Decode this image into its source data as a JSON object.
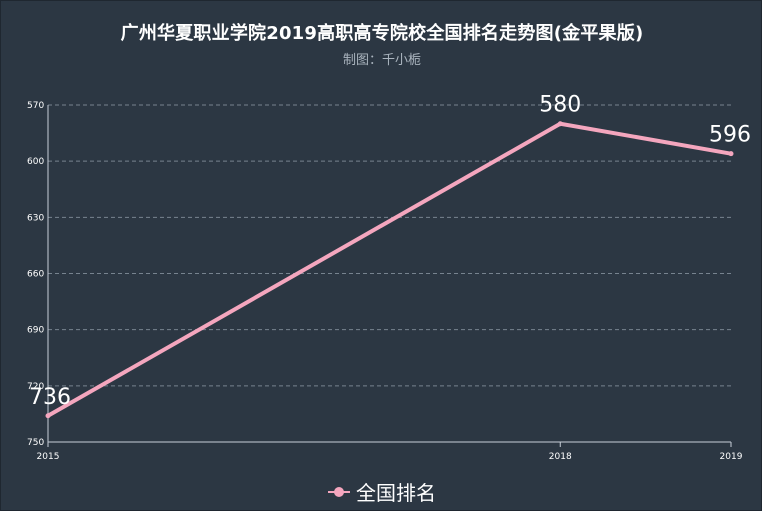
{
  "title": "广州华夏职业学院2019高职高专院校全国排名走势图(金平果版)",
  "subtitle": "制图：千小栀",
  "colors": {
    "background": "#2c3743",
    "series": "#f4a6be",
    "grid": "#8a96a3",
    "text": "#ffffff"
  },
  "chart_data": {
    "type": "line",
    "title": "广州华夏职业学院2019高职高专院校全国排名走势图(金平果版)",
    "subtitle": "制图：千小栀",
    "x": [
      "2015",
      "2018",
      "2019"
    ],
    "y_axis": {
      "inverse": true,
      "min": 570,
      "max": 750,
      "ticks": [
        570,
        600,
        630,
        660,
        690,
        720,
        750
      ]
    },
    "grid": true,
    "legend_position": "bottom",
    "series": [
      {
        "name": "全国排名",
        "values": [
          736,
          580,
          596
        ],
        "labels": [
          "736",
          "580",
          "596"
        ]
      }
    ]
  }
}
